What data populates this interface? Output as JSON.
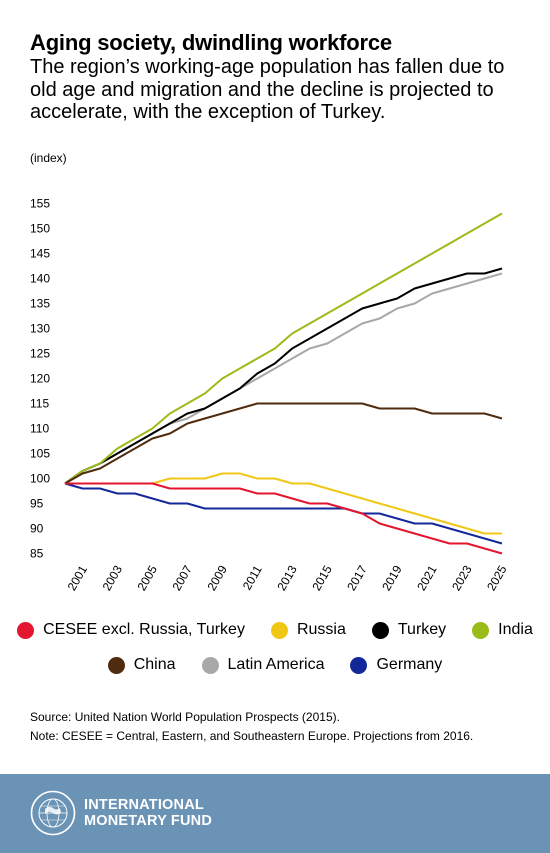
{
  "header": {
    "title": "Aging society, dwindling workforce",
    "subtitle": "The region’s working-age population has fallen due to old age and migration and the decline is projected to accelerate, with the exception of Turkey.",
    "unit": "(index)"
  },
  "chart_data": {
    "type": "line",
    "title": "Aging society, dwindling workforce",
    "ylabel": "(index)",
    "xlabel": "",
    "ylim": [
      85,
      155
    ],
    "yticks": [
      85,
      90,
      95,
      100,
      105,
      110,
      115,
      120,
      125,
      130,
      135,
      140,
      145,
      150,
      155
    ],
    "xticks": [
      "2001",
      "2003",
      "2005",
      "2007",
      "2009",
      "2011",
      "2013",
      "2015",
      "2017",
      "2019",
      "2021",
      "2023",
      "2025"
    ],
    "x": [
      2000,
      2001,
      2002,
      2003,
      2004,
      2005,
      2006,
      2007,
      2008,
      2009,
      2010,
      2011,
      2012,
      2013,
      2014,
      2015,
      2016,
      2017,
      2018,
      2019,
      2020,
      2021,
      2022,
      2023,
      2024,
      2025
    ],
    "grid": false,
    "legend_position": "bottom",
    "series": [
      {
        "name": "CESEE excl. Russia, Turkey",
        "color": "#e4152f",
        "values": [
          99,
          99,
          99,
          99,
          99,
          99,
          98,
          98,
          98,
          98,
          98,
          97,
          97,
          96,
          95,
          95,
          94,
          93,
          91,
          90,
          89,
          88,
          87,
          87,
          86,
          85
        ]
      },
      {
        "name": "Russia",
        "color": "#f1c715",
        "values": [
          99,
          99,
          99,
          99,
          99,
          99,
          100,
          100,
          100,
          101,
          101,
          100,
          100,
          99,
          99,
          98,
          97,
          96,
          95,
          94,
          93,
          92,
          91,
          90,
          89,
          89
        ]
      },
      {
        "name": "Turkey",
        "color": "#000000",
        "values": [
          99,
          101.5,
          103,
          105,
          107,
          109,
          111,
          113,
          114,
          116,
          118,
          121,
          123,
          126,
          128,
          130,
          132,
          134,
          135,
          136,
          138,
          139,
          140,
          141,
          141,
          142
        ]
      },
      {
        "name": "India",
        "color": "#9bbb19",
        "values": [
          99,
          101.5,
          103,
          106,
          108,
          110,
          113,
          115,
          117,
          120,
          122,
          124,
          126,
          129,
          131,
          133,
          135,
          137,
          139,
          141,
          143,
          145,
          147,
          149,
          151,
          153
        ]
      },
      {
        "name": "China",
        "color": "#4f2b0f",
        "values": [
          99,
          101,
          102,
          104,
          106,
          108,
          109,
          111,
          112,
          113,
          114,
          115,
          115,
          115,
          115,
          115,
          115,
          115,
          114,
          114,
          114,
          113,
          113,
          113,
          113,
          112
        ]
      },
      {
        "name": "Latin America",
        "color": "#a8a8a8",
        "values": [
          99,
          101.5,
          103,
          105,
          107,
          109,
          111,
          112,
          114,
          116,
          118,
          120,
          122,
          124,
          126,
          127,
          129,
          131,
          132,
          134,
          135,
          137,
          138,
          139,
          140,
          141
        ]
      },
      {
        "name": "Germany",
        "color": "#13299a",
        "values": [
          99,
          98,
          98,
          97,
          97,
          96,
          95,
          95,
          94,
          94,
          94,
          94,
          94,
          94,
          94,
          94,
          94,
          93,
          93,
          92,
          91,
          91,
          90,
          89,
          88,
          87
        ]
      }
    ]
  },
  "legend": {
    "row1": [
      "CESEE excl. Russia, Turkey",
      "Russia",
      "Turkey",
      "India"
    ],
    "row2": [
      "China",
      "Latin America",
      "Germany"
    ]
  },
  "footer": {
    "source": "Source: United Nation World Population Prospects (2015).",
    "note": "Note: CESEE = Central, Eastern, and Southeastern Europe. Projections from 2016.",
    "org_line1": "INTERNATIONAL",
    "org_line2": "MONETARY FUND",
    "seal_color": "#ffffff",
    "bar_color": "#6a93b6"
  }
}
